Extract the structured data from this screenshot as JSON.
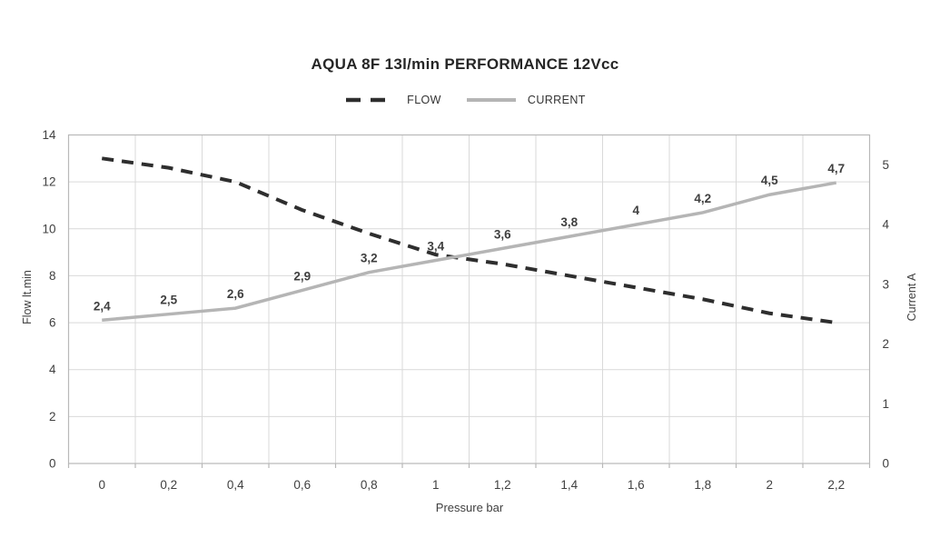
{
  "chart_data": {
    "type": "line",
    "title": "AQUA 8F 13l/min PERFORMANCE 12Vcc",
    "xlabel": "Pressure bar",
    "ylabel_left": "Flow lt.min",
    "ylabel_right": "Current A",
    "grid": true,
    "legend_position": "top",
    "x_categories": [
      "0",
      "0,2",
      "0,4",
      "0,6",
      "0,8",
      "1",
      "1,2",
      "1,4",
      "1,6",
      "1,8",
      "2",
      "2,2"
    ],
    "x_values": [
      0,
      0.2,
      0.4,
      0.6,
      0.8,
      1,
      1.2,
      1.4,
      1.6,
      1.8,
      2,
      2.2
    ],
    "axes": {
      "left": {
        "min": 0,
        "max": 14,
        "tick_values": [
          0,
          2,
          4,
          6,
          8,
          10,
          12,
          14
        ],
        "ticks": [
          "0",
          "2",
          "4",
          "6",
          "8",
          "10",
          "12",
          "14"
        ]
      },
      "right": {
        "min": 0,
        "max": 5,
        "scale_max": 5.5,
        "tick_values": [
          0,
          1,
          2,
          3,
          4,
          5
        ],
        "ticks": [
          "0",
          "1",
          "2",
          "3",
          "4",
          "5"
        ]
      }
    },
    "series": [
      {
        "name": "FLOW",
        "axis": "left",
        "style": "dashed",
        "color": "#2e2e2e",
        "values": [
          13,
          12.6,
          12,
          10.8,
          9.8,
          8.9,
          8.5,
          8,
          7.5,
          7,
          6.4,
          6
        ],
        "point_labels": null
      },
      {
        "name": "CURRENT",
        "axis": "right",
        "style": "solid",
        "color": "#b5b5b5",
        "values": [
          2.4,
          2.5,
          2.6,
          2.9,
          3.2,
          3.4,
          3.6,
          3.8,
          4,
          4.2,
          4.5,
          4.7
        ],
        "point_labels": [
          "2,4",
          "2,5",
          "2,6",
          "2,9",
          "3,2",
          "3,4",
          "3,6",
          "3,8",
          "4",
          "4,2",
          "4,5",
          "4,7"
        ]
      }
    ]
  },
  "colors": {
    "grid": "#d9d9d9",
    "frame": "#b8b8b8",
    "axis_text": "#404040",
    "title_text": "#262626",
    "label_text": "#3f3f3f"
  }
}
